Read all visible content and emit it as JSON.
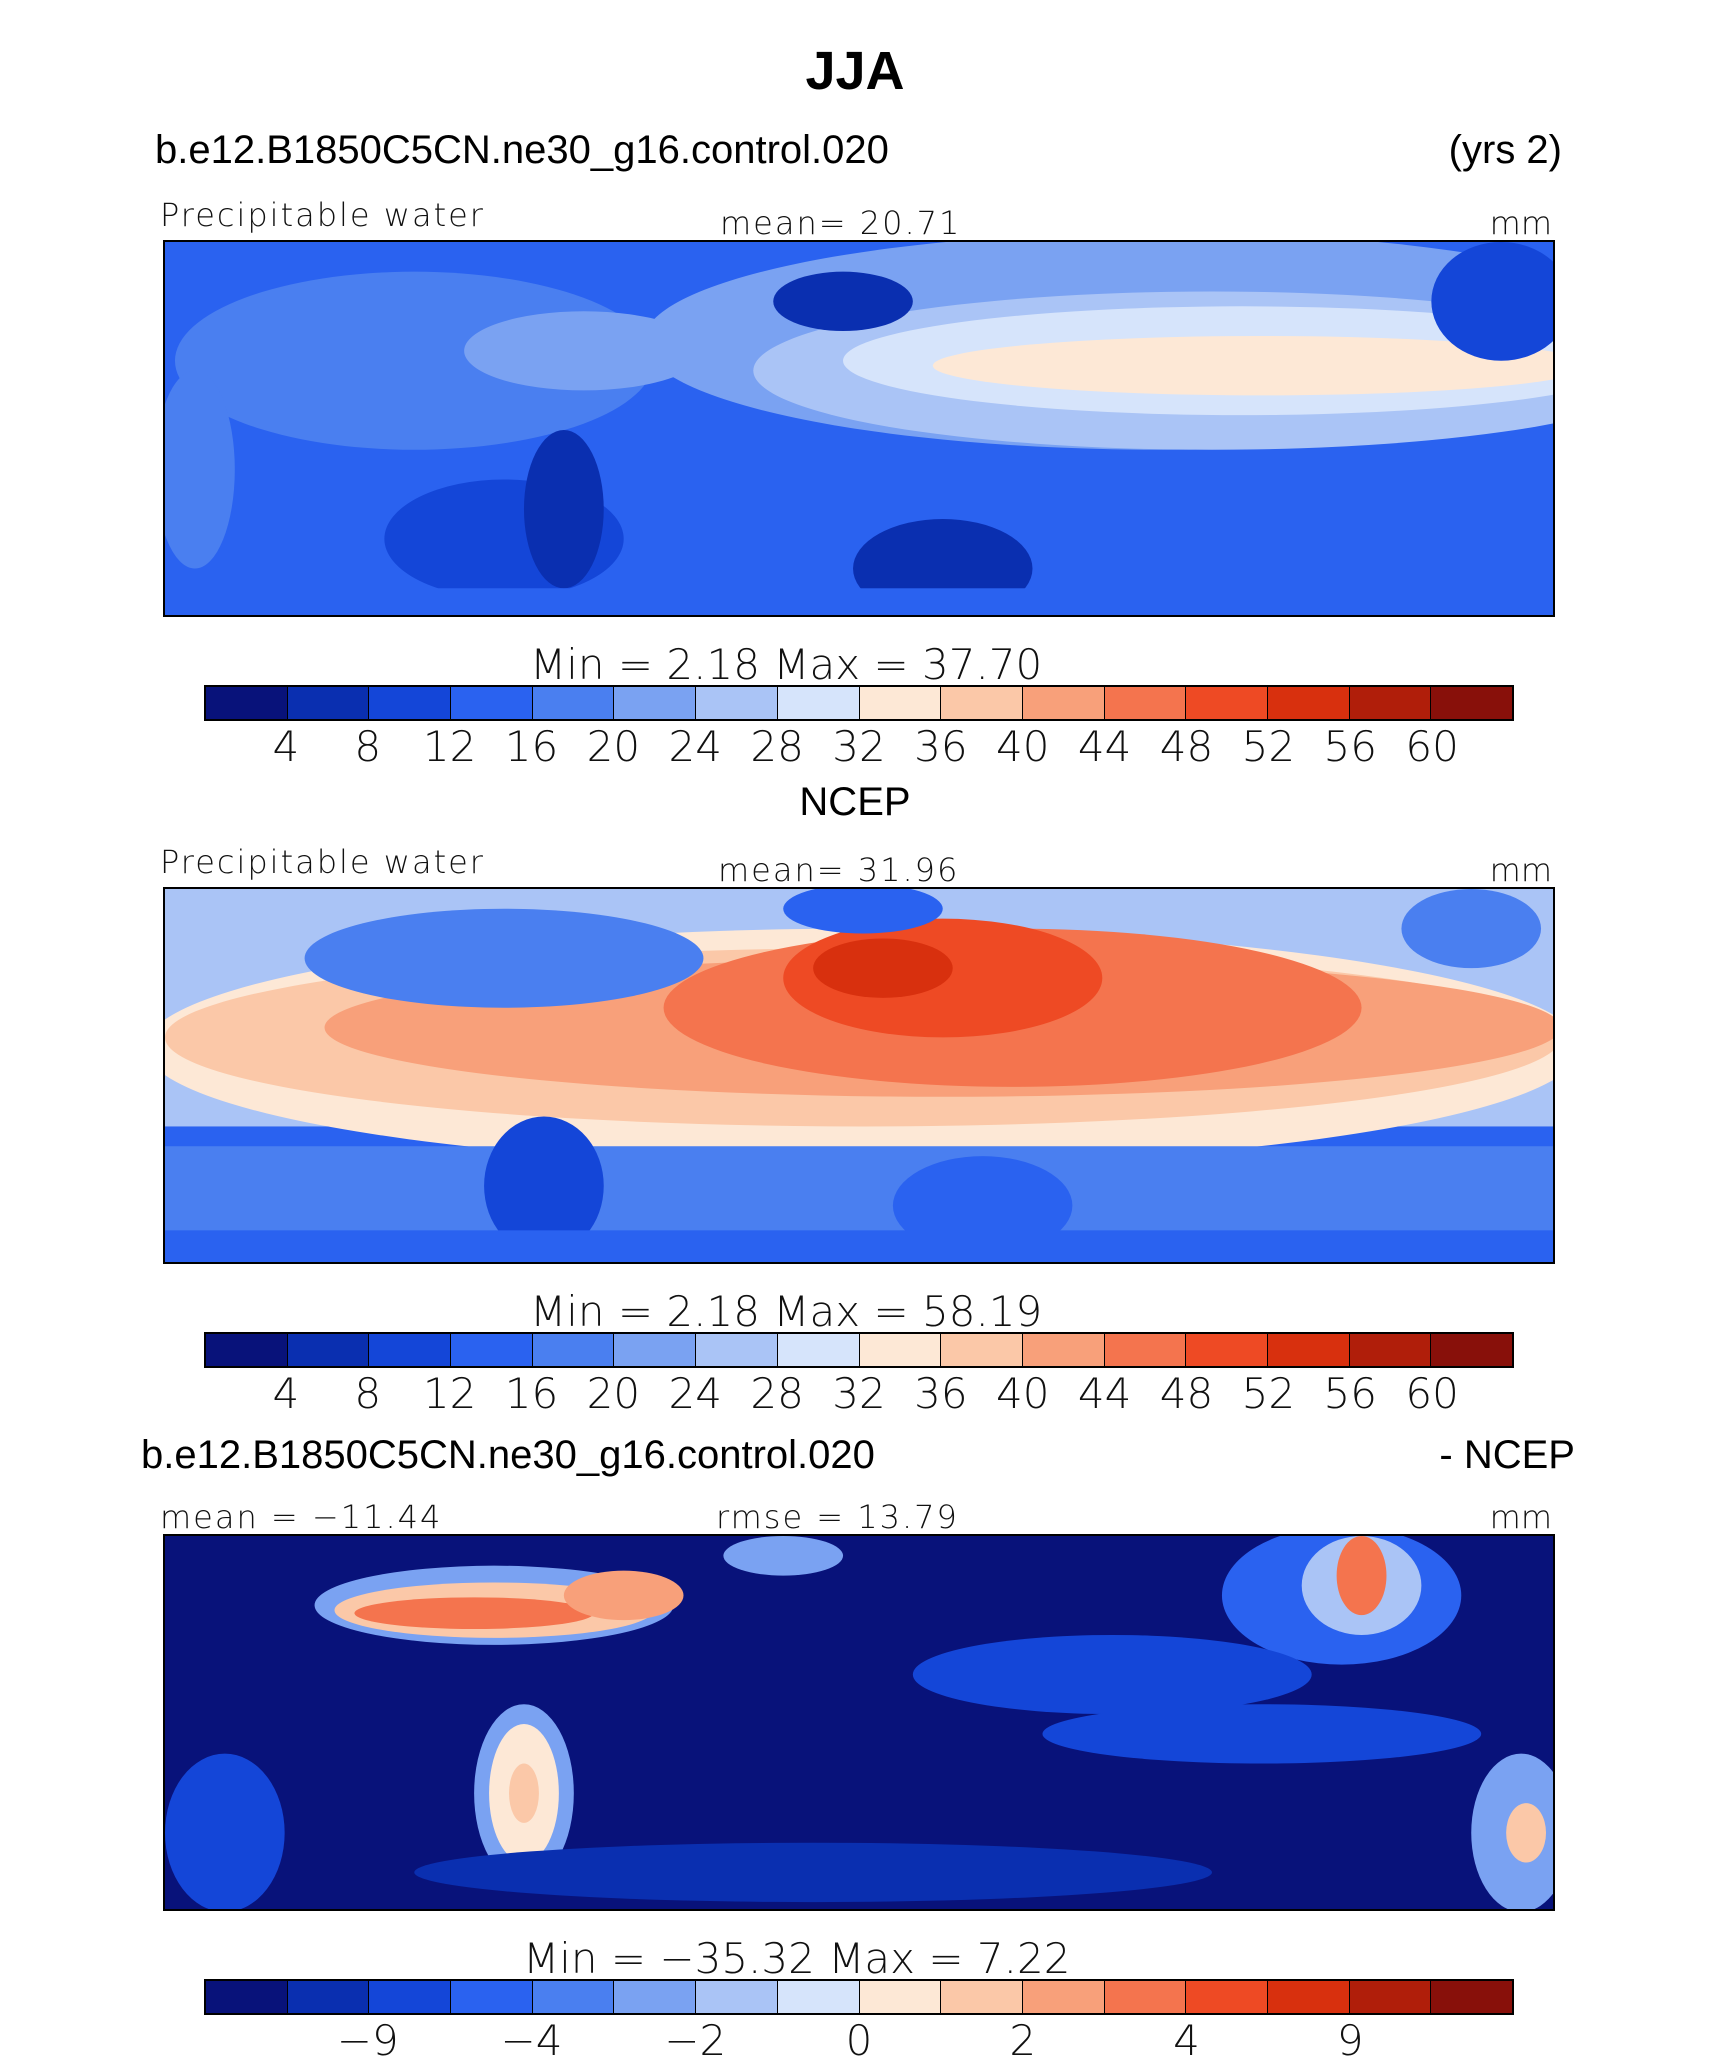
{
  "title": "JJA",
  "panel1": {
    "case": "b.e12.B1850C5CN.ne30_g16.control.020",
    "years": "(yrs 2)",
    "variable": "Precipitable water",
    "mean": "mean=   20.71",
    "units": "mm",
    "minmax": "Min =     2.18  Max =    37.70"
  },
  "panel2": {
    "case": "NCEP",
    "variable": "Precipitable water",
    "mean": "mean=   31.96",
    "units": "mm",
    "minmax": "Min =     2.18  Max =    58.19"
  },
  "panel3": {
    "case": "b.e12.B1850C5CN.ne30_g16.control.020",
    "case_suffix": "- NCEP",
    "mean": "mean = −11.44",
    "rmse": "rmse =    13.79",
    "units": "mm",
    "minmax": "Min = −35.32  Max =     7.22"
  },
  "colorbar": {
    "colors": [
      "#08127a",
      "#0a2fb0",
      "#1446d8",
      "#2a62f0",
      "#4a7ff0",
      "#7aa2f2",
      "#aac4f6",
      "#d6e4fb",
      "#fde8d6",
      "#fbc8a8",
      "#f8a07a",
      "#f4744e",
      "#ee4a24",
      "#d8300e",
      "#b01e0a",
      "#88100a"
    ],
    "labels_main": [
      "4",
      "8",
      "12",
      "16",
      "20",
      "24",
      "28",
      "32",
      "36",
      "40",
      "44",
      "48",
      "52",
      "56",
      "60"
    ],
    "labels_diff": [
      "−9",
      "−4",
      "−2",
      "0",
      "2",
      "4",
      "9"
    ]
  }
}
